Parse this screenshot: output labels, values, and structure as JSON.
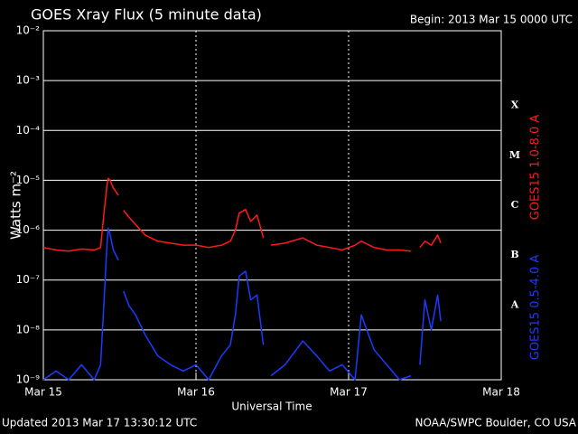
{
  "chart_data": {
    "type": "line",
    "title": "GOES Xray Flux (5 minute data)",
    "subtitle": "Begin:  2013 Mar 15 0000 UTC",
    "y_label": "Watts m⁻²",
    "x_label": "Universal Time",
    "footer_left": "Updated 2013 Mar 17 13:30:12 UTC",
    "footer_right": "NOAA/SWPC Boulder, CO USA",
    "log_y": true,
    "grid": true,
    "flare_classes": [
      "A",
      "B",
      "C",
      "M",
      "X"
    ],
    "xlim": [
      0,
      72
    ],
    "xticks": [
      {
        "value": 0,
        "label": "Mar 15"
      },
      {
        "value": 24,
        "label": "Mar 16"
      },
      {
        "value": 48,
        "label": "Mar 17"
      },
      {
        "value": 72,
        "label": "Mar 18"
      }
    ],
    "ylim": [
      1e-09,
      0.01
    ],
    "yticks": [
      {
        "value": 1e-09,
        "label": "10⁻⁹"
      },
      {
        "value": 1e-08,
        "label": "10⁻⁸"
      },
      {
        "value": 1e-07,
        "label": "10⁻⁷"
      },
      {
        "value": 1e-06,
        "label": "10⁻⁶"
      },
      {
        "value": 1e-05,
        "label": "10⁻⁵"
      },
      {
        "value": 0.0001,
        "label": "10⁻⁴"
      },
      {
        "value": 0.001,
        "label": "10⁻³"
      },
      {
        "value": 0.01,
        "label": "10⁻²"
      }
    ],
    "x": [
      0,
      2,
      4,
      6,
      8,
      9,
      9.5,
      10,
      10.2,
      10.5,
      11,
      11.8,
      12.2,
      12.6,
      13.5,
      14.5,
      16,
      18,
      20,
      22,
      24,
      26,
      28,
      29.4,
      30.2,
      30.8,
      31.8,
      32.6,
      33.6,
      34.6,
      35.2,
      35.8,
      38,
      40.8,
      43,
      45,
      47,
      49,
      50,
      52,
      54,
      56,
      57.8,
      58.5,
      59.2,
      60,
      61,
      62,
      62.5
    ],
    "series": [
      {
        "name": "GOES15 1.0-8.0 A",
        "color": "#ff1a1a",
        "values": [
          4.5e-07,
          4e-07,
          3.8e-07,
          4.2e-07,
          4e-07,
          4.5e-07,
          2e-06,
          8e-06,
          1.1e-05,
          1e-05,
          7e-06,
          5e-06,
          null,
          2.5e-06,
          1.8e-06,
          1.3e-06,
          8e-07,
          6e-07,
          5.5e-07,
          5e-07,
          5e-07,
          4.5e-07,
          5e-07,
          6e-07,
          1e-06,
          2.2e-06,
          2.6e-06,
          1.5e-06,
          2e-06,
          7e-07,
          null,
          5e-07,
          5.5e-07,
          7e-07,
          5e-07,
          4.5e-07,
          4e-07,
          5e-07,
          6e-07,
          4.5e-07,
          4e-07,
          4e-07,
          3.8e-07,
          null,
          4.5e-07,
          6e-07,
          5e-07,
          8e-07,
          5.5e-07
        ]
      },
      {
        "name": "GOES15 0.5-4.0 A",
        "color": "#1a3cff",
        "values": [
          1e-09,
          1.5e-09,
          1e-09,
          2e-09,
          1e-09,
          2e-09,
          3e-08,
          5e-07,
          1.1e-06,
          8e-07,
          4e-07,
          2.5e-07,
          null,
          6e-08,
          3e-08,
          2e-08,
          8e-09,
          3e-09,
          2e-09,
          1.5e-09,
          2e-09,
          1e-09,
          3e-09,
          5e-09,
          2e-08,
          1.2e-07,
          1.5e-07,
          4e-08,
          5e-08,
          5e-09,
          null,
          1.2e-09,
          2e-09,
          6e-09,
          3e-09,
          1.5e-09,
          2e-09,
          1e-09,
          2e-08,
          4e-09,
          2e-09,
          1e-09,
          1.2e-09,
          null,
          2e-09,
          4e-08,
          1e-08,
          5e-08,
          1.5e-08
        ]
      }
    ]
  }
}
